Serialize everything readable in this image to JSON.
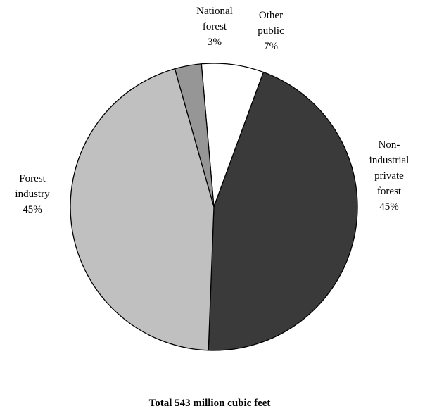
{
  "chart_data": {
    "type": "pie",
    "slices": [
      {
        "label_lines": [
          "Other",
          "public"
        ],
        "value": 7,
        "value_label": "7%",
        "color": "#ffffff"
      },
      {
        "label_lines": [
          "Non-",
          "industrial",
          "private",
          "forest"
        ],
        "value": 45,
        "value_label": "45%",
        "color": "#3a3a3a"
      },
      {
        "label_lines": [
          "Forest",
          "industry"
        ],
        "value": 45,
        "value_label": "45%",
        "color": "#c0c0c0"
      },
      {
        "label_lines": [
          "National",
          "forest"
        ],
        "value": 3,
        "value_label": "3%",
        "color": "#969696"
      }
    ],
    "caption": "Total 543 million cubic feet"
  }
}
